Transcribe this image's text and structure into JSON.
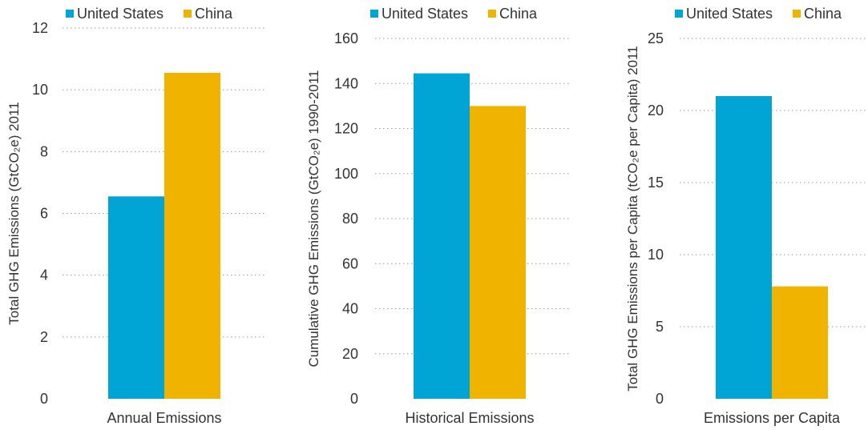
{
  "legend": [
    {
      "label": "United States",
      "color": "#00A5D6"
    },
    {
      "label": "China",
      "color": "#F0B400"
    }
  ],
  "chart_data": [
    {
      "type": "bar",
      "categories": [
        "Annual Emissions"
      ],
      "series": [
        {
          "name": "United States",
          "values": [
            6.55
          ],
          "color": "#00A5D6"
        },
        {
          "name": "China",
          "values": [
            10.55
          ],
          "color": "#F0B400"
        }
      ],
      "ylabel": "Total GHG Emissions (GtCO₂e) 2011",
      "xlabel": "",
      "ylim": [
        0,
        12
      ],
      "yticks": [
        0,
        2,
        4,
        6,
        8,
        10,
        12
      ],
      "grid": true,
      "legend_position": "top-left"
    },
    {
      "type": "bar",
      "categories": [
        "Historical Emissions"
      ],
      "series": [
        {
          "name": "United States",
          "values": [
            144.5
          ],
          "color": "#00A5D6"
        },
        {
          "name": "China",
          "values": [
            130
          ],
          "color": "#F0B400"
        }
      ],
      "ylabel": "Cumulative GHG Emissions (GtCO₂e) 1990-2011",
      "xlabel": "",
      "ylim": [
        0,
        160
      ],
      "yticks": [
        0,
        20,
        40,
        60,
        80,
        100,
        120,
        140,
        160
      ],
      "grid": true,
      "legend_position": "top-left"
    },
    {
      "type": "bar",
      "categories": [
        "Emissions per Capita"
      ],
      "series": [
        {
          "name": "United States",
          "values": [
            21
          ],
          "color": "#00A5D6"
        },
        {
          "name": "China",
          "values": [
            7.8
          ],
          "color": "#F0B400"
        }
      ],
      "ylabel": "Total GHG Emissions per Capita (tCO₂e per Capita) 2011",
      "xlabel": "",
      "ylim": [
        0,
        25
      ],
      "yticks": [
        0,
        5,
        10,
        15,
        20,
        25
      ],
      "grid": true,
      "legend_position": "top-left"
    }
  ]
}
